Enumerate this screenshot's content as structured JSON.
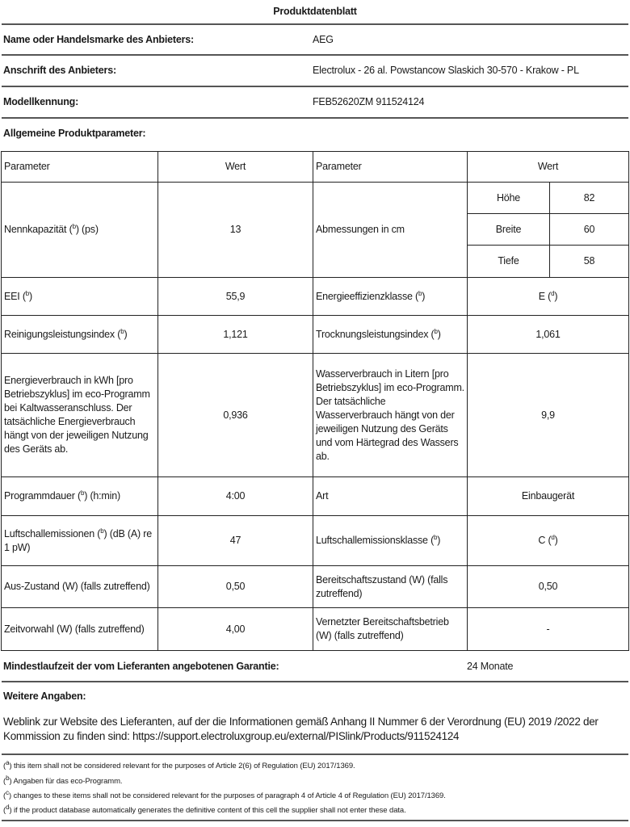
{
  "title": "Produktdatenblatt",
  "supplier": {
    "name_label": "Name oder Handelsmarke des Anbieters:",
    "name_value": "AEG",
    "address_label": "Anschrift des Anbieters:",
    "address_value": "Electrolux - 26 al. Powstancow Slaskich 30-570 - Krakow - PL",
    "model_label": "Modellkennung:",
    "model_value": "FEB52620ZM 911524124"
  },
  "general_label": "Allgemeine Produktparameter:",
  "table": {
    "h_param": "Parameter",
    "h_value": "Wert",
    "capacity_label": "Nennkapazität (",
    "capacity_sup": "b",
    "capacity_suffix": ") (ps)",
    "capacity_value": "13",
    "dims_label": "Abmessungen in cm",
    "dims": [
      {
        "label": "Höhe",
        "value": "82"
      },
      {
        "label": "Breite",
        "value": "60"
      },
      {
        "label": "Tiefe",
        "value": "58"
      }
    ],
    "eei_label": "EEI (",
    "eei_sup": "b",
    "eei_suffix": ")",
    "eei_value": "55,9",
    "eclass_label": "Energieeffizienzklasse (",
    "eclass_sup": "b",
    "eclass_suffix": ")",
    "eclass_value": "E (",
    "eclass_value_sup": "d",
    "eclass_value_suffix": ")",
    "clean_label": "Reinigungsleistungsindex (",
    "clean_sup": "b",
    "clean_suffix": ")",
    "clean_value": "1,121",
    "dry_label": "Trocknungsleistungsindex (",
    "dry_sup": "b",
    "dry_suffix": ")",
    "dry_value": "1,061",
    "energy_label": "Energieverbrauch in kWh [pro Betriebszyklus] im eco-Programm bei Kaltwasseranschluss. Der tatsächliche Energieverbrauch hängt von der jeweiligen Nutzung des Geräts ab.",
    "energy_value": "0,936",
    "water_label": "Wasserverbrauch in Litern [pro Betriebszyklus] im eco-Programm. Der tatsächliche Wasserverbrauch hängt von der jeweiligen Nutzung des Geräts und vom Härtegrad des Wassers ab.",
    "water_value": "9,9",
    "duration_label": "Programmdauer (",
    "duration_sup": "b",
    "duration_suffix": ") (h:min)",
    "duration_value": "4:00",
    "type_label": "Art",
    "type_value": "Einbaugerät",
    "noise_label": "Luftschallemissionen (",
    "noise_sup": "b",
    "noise_suffix": ") (dB (A) re 1 pW)",
    "noise_value": "47",
    "noiseclass_label": "Luftschallemissionsklasse (",
    "noiseclass_sup": "b",
    "noiseclass_suffix": ")",
    "noiseclass_value": "C (",
    "noiseclass_value_sup": "d",
    "noiseclass_value_suffix": ")",
    "off_label": "Aus-Zustand (W) (falls zutreffend)",
    "off_value": "0,50",
    "standby_label": "Bereitschaftszustand (W) (falls zutreffend)",
    "standby_value": "0,50",
    "delay_label": "Zeitvorwahl (W) (falls zutreffend)",
    "delay_value": "4,00",
    "network_label": "Vernetzter Bereitschaftsbetrieb (W) (falls zutreffend)",
    "network_value": "-"
  },
  "warranty_label": "Mindestlaufzeit der vom Lieferanten angebotenen Garantie:",
  "warranty_value": "24 Monate",
  "more_label": "Weitere Angaben:",
  "weblink_text": "Weblink zur Website des Lieferanten, auf der die Informationen gemäß Anhang II Nummer 6 der Verordnung (EU) 2019 /2022 der Kommission zu finden sind: https://support.electroluxgroup.eu/external/PISlink/Products/911524124",
  "footnotes": [
    {
      "mark": "a",
      "text": "this item shall not be considered relevant for the purposes of Article 2(6) of Regulation (EU) 2017/1369."
    },
    {
      "mark": "b",
      "text": "Angaben für das eco-Programm."
    },
    {
      "mark": "c",
      "text": "changes to these items shall not be considered relevant for the purposes of paragraph 4 of Article 4 of Regulation (EU) 2017/1369."
    },
    {
      "mark": "d",
      "text": "if the product database automatically generates the definitive content of this cell the supplier shall not enter these data."
    }
  ]
}
